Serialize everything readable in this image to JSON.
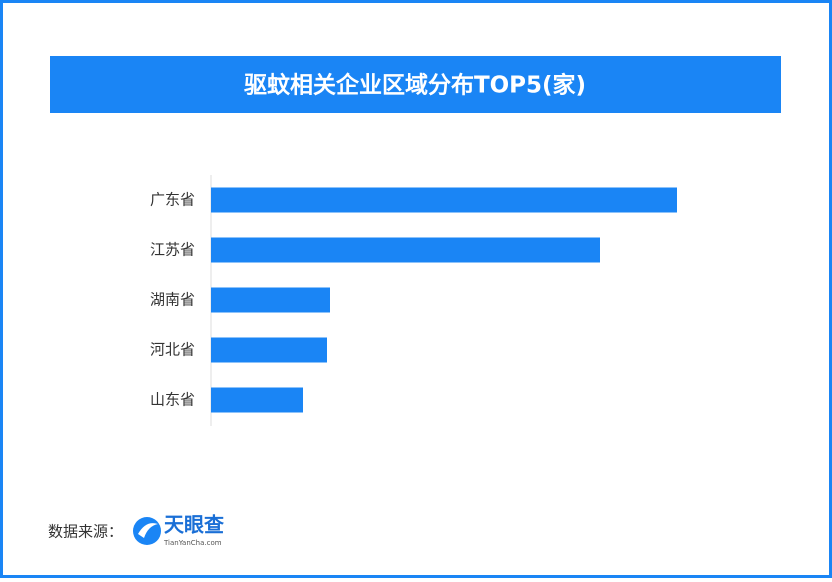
{
  "chart_data": {
    "type": "bar",
    "orientation": "horizontal",
    "title": "驱蚊相关企业区域分布TOP5(家)",
    "categories": [
      "广东省",
      "江苏省",
      "湖南省",
      "河北省",
      "山东省"
    ],
    "values": [
      466,
      389,
      119,
      116,
      92
    ],
    "color": "#1a85f5"
  },
  "footer": {
    "source": "数据来源：",
    "logo": "天眼查",
    "logo_url": "TianYanCha.com"
  }
}
